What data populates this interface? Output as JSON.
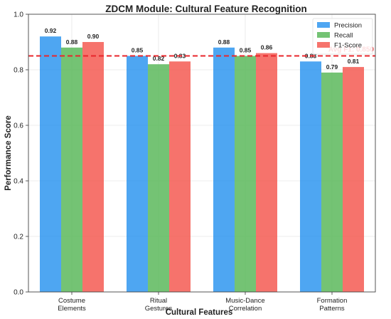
{
  "chart_data": {
    "type": "bar",
    "title": "ZDCM Module: Cultural Feature Recognition",
    "xlabel": "Cultural Features",
    "ylabel": "Performance Score",
    "ylim": [
      0,
      1.0
    ],
    "yticks": [
      "0.0",
      "0.2",
      "0.4",
      "0.6",
      "0.8",
      "1.0"
    ],
    "categories": [
      [
        "Costume",
        "Elements"
      ],
      [
        "Ritual",
        "Gestures"
      ],
      [
        "Music-Dance",
        "Correlation"
      ],
      [
        "Formation",
        "Patterns"
      ]
    ],
    "series": [
      {
        "name": "Precision",
        "color": "#2f96f0",
        "values": [
          0.92,
          0.85,
          0.88,
          0.83
        ],
        "labels": [
          "0.92",
          "0.85",
          "0.88",
          "0.83"
        ]
      },
      {
        "name": "Recall",
        "color": "#5cb85c",
        "values": [
          0.88,
          0.82,
          0.85,
          0.79
        ],
        "labels": [
          "0.88",
          "0.82",
          "0.85",
          "0.79"
        ]
      },
      {
        "name": "F1-Score",
        "color": "#f45b52",
        "values": [
          0.9,
          0.83,
          0.86,
          0.81
        ],
        "labels": [
          "0.90",
          "0.83",
          "0.86",
          "0.81"
        ]
      }
    ],
    "reference_line": {
      "value": 0.85,
      "label": "Avg F1: 0.850",
      "color": "#e8262b"
    },
    "grid": true,
    "legend_position": "top-right"
  }
}
